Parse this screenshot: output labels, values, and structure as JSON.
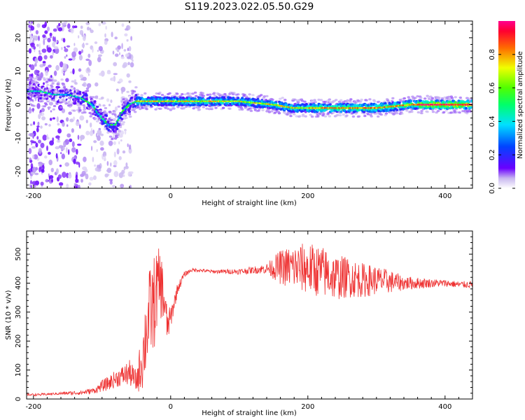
{
  "title": "S119.2023.022.05.50.G29",
  "colorbar": {
    "label": "Normalized spectral amplitude",
    "ticks": [
      "0.0",
      "0.2",
      "0.4",
      "0.6",
      "0.8"
    ],
    "tick_values": [
      0.0,
      0.2,
      0.4,
      0.6,
      0.8
    ],
    "range": [
      0,
      1
    ]
  },
  "chart_data": [
    {
      "type": "heatmap",
      "title": "",
      "xlabel": "Height of straight line (km)",
      "ylabel": "Frequency (Hz)",
      "xlim": [
        -210,
        440
      ],
      "ylim": [
        -25,
        25
      ],
      "xticks": [
        -200,
        0,
        200,
        400
      ],
      "yticks": [
        -20,
        -10,
        0,
        10,
        20
      ],
      "ridge": {
        "x": [
          -190,
          -170,
          -150,
          -130,
          -115,
          -100,
          -90,
          -80,
          -70,
          -60,
          -50,
          -30,
          0,
          50,
          100,
          150,
          180,
          200,
          250,
          300,
          350,
          400,
          440
        ],
        "freq": [
          4,
          3,
          3,
          2,
          0,
          -4,
          -6,
          -6,
          -2,
          0,
          1,
          1,
          1,
          1,
          1,
          0,
          -1,
          -1,
          -1,
          -1,
          0,
          0,
          0
        ]
      }
    },
    {
      "type": "line",
      "title": "",
      "xlabel": "Height of straight line (km)",
      "ylabel": "SNR (10 * v/v)",
      "xlim": [
        -210,
        440
      ],
      "ylim": [
        0,
        580
      ],
      "xticks": [
        -200,
        0,
        200,
        400
      ],
      "yticks": [
        0,
        100,
        200,
        300,
        400,
        500
      ],
      "series": [
        {
          "color": "#ee3030",
          "x": [
            -210,
            -190,
            -170,
            -150,
            -130,
            -110,
            -100,
            -90,
            -80,
            -70,
            -60,
            -50,
            -40,
            -35,
            -30,
            -25,
            -20,
            -15,
            -10,
            -5,
            0,
            10,
            20,
            30,
            40,
            60,
            80,
            100,
            120,
            140,
            160,
            180,
            200,
            220,
            240,
            260,
            280,
            300,
            320,
            340,
            360,
            380,
            400,
            420,
            440
          ],
          "y": [
            15,
            15,
            18,
            20,
            22,
            30,
            45,
            55,
            70,
            80,
            90,
            60,
            150,
            250,
            300,
            320,
            380,
            400,
            350,
            250,
            280,
            380,
            430,
            445,
            445,
            440,
            440,
            440,
            445,
            450,
            455,
            455,
            450,
            440,
            420,
            420,
            410,
            410,
            405,
            400,
            400,
            400,
            400,
            395,
            395
          ],
          "amp": [
            4,
            4,
            4,
            6,
            8,
            10,
            20,
            25,
            30,
            35,
            45,
            40,
            120,
            150,
            160,
            170,
            140,
            120,
            100,
            60,
            40,
            20,
            10,
            6,
            6,
            6,
            8,
            10,
            12,
            18,
            60,
            80,
            90,
            90,
            80,
            70,
            60,
            50,
            40,
            25,
            20,
            15,
            12,
            12,
            12
          ]
        }
      ]
    }
  ]
}
